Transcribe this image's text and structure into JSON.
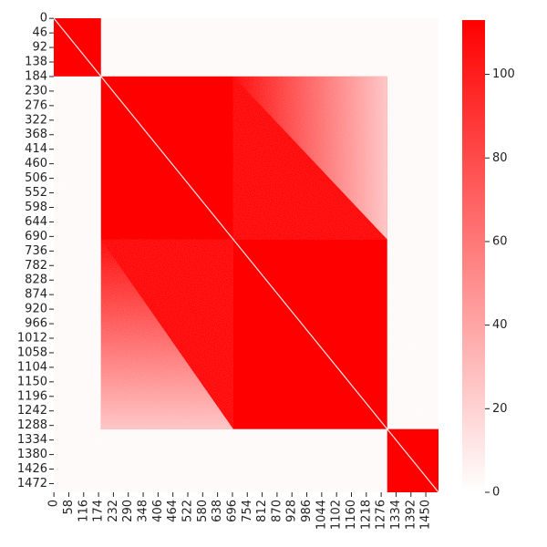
{
  "chart_data": {
    "type": "heatmap",
    "title": "",
    "xlabel": "",
    "ylabel": "",
    "n": 1500,
    "x_ticks": [
      "0",
      "58",
      "116",
      "174",
      "232",
      "290",
      "348",
      "406",
      "464",
      "522",
      "580",
      "638",
      "696",
      "754",
      "812",
      "870",
      "928",
      "986",
      "1044",
      "1102",
      "1160",
      "1218",
      "1276",
      "1334",
      "1392",
      "1450"
    ],
    "y_ticks": [
      "0",
      "46",
      "92",
      "138",
      "184",
      "230",
      "276",
      "322",
      "368",
      "414",
      "460",
      "506",
      "552",
      "598",
      "644",
      "690",
      "736",
      "782",
      "828",
      "874",
      "920",
      "966",
      "1012",
      "1058",
      "1104",
      "1150",
      "1196",
      "1242",
      "1288",
      "1334",
      "1380",
      "1426",
      "1472"
    ],
    "blocks": [
      {
        "start": 0,
        "end": 184,
        "value": 113
      },
      {
        "start": 184,
        "end": 1300,
        "value": 113
      },
      {
        "start": 1300,
        "end": 1500,
        "value": 113
      }
    ],
    "background_value": 2,
    "diagonal_value": 0,
    "colorbar": {
      "vmin": 0,
      "vmax": 113,
      "ticks": [
        "0",
        "20",
        "40",
        "60",
        "80",
        "100"
      ],
      "low_color": "#ffffff",
      "high_color": "#ff0000"
    },
    "colormap": [
      "#ffffff",
      "#ff0000"
    ]
  }
}
